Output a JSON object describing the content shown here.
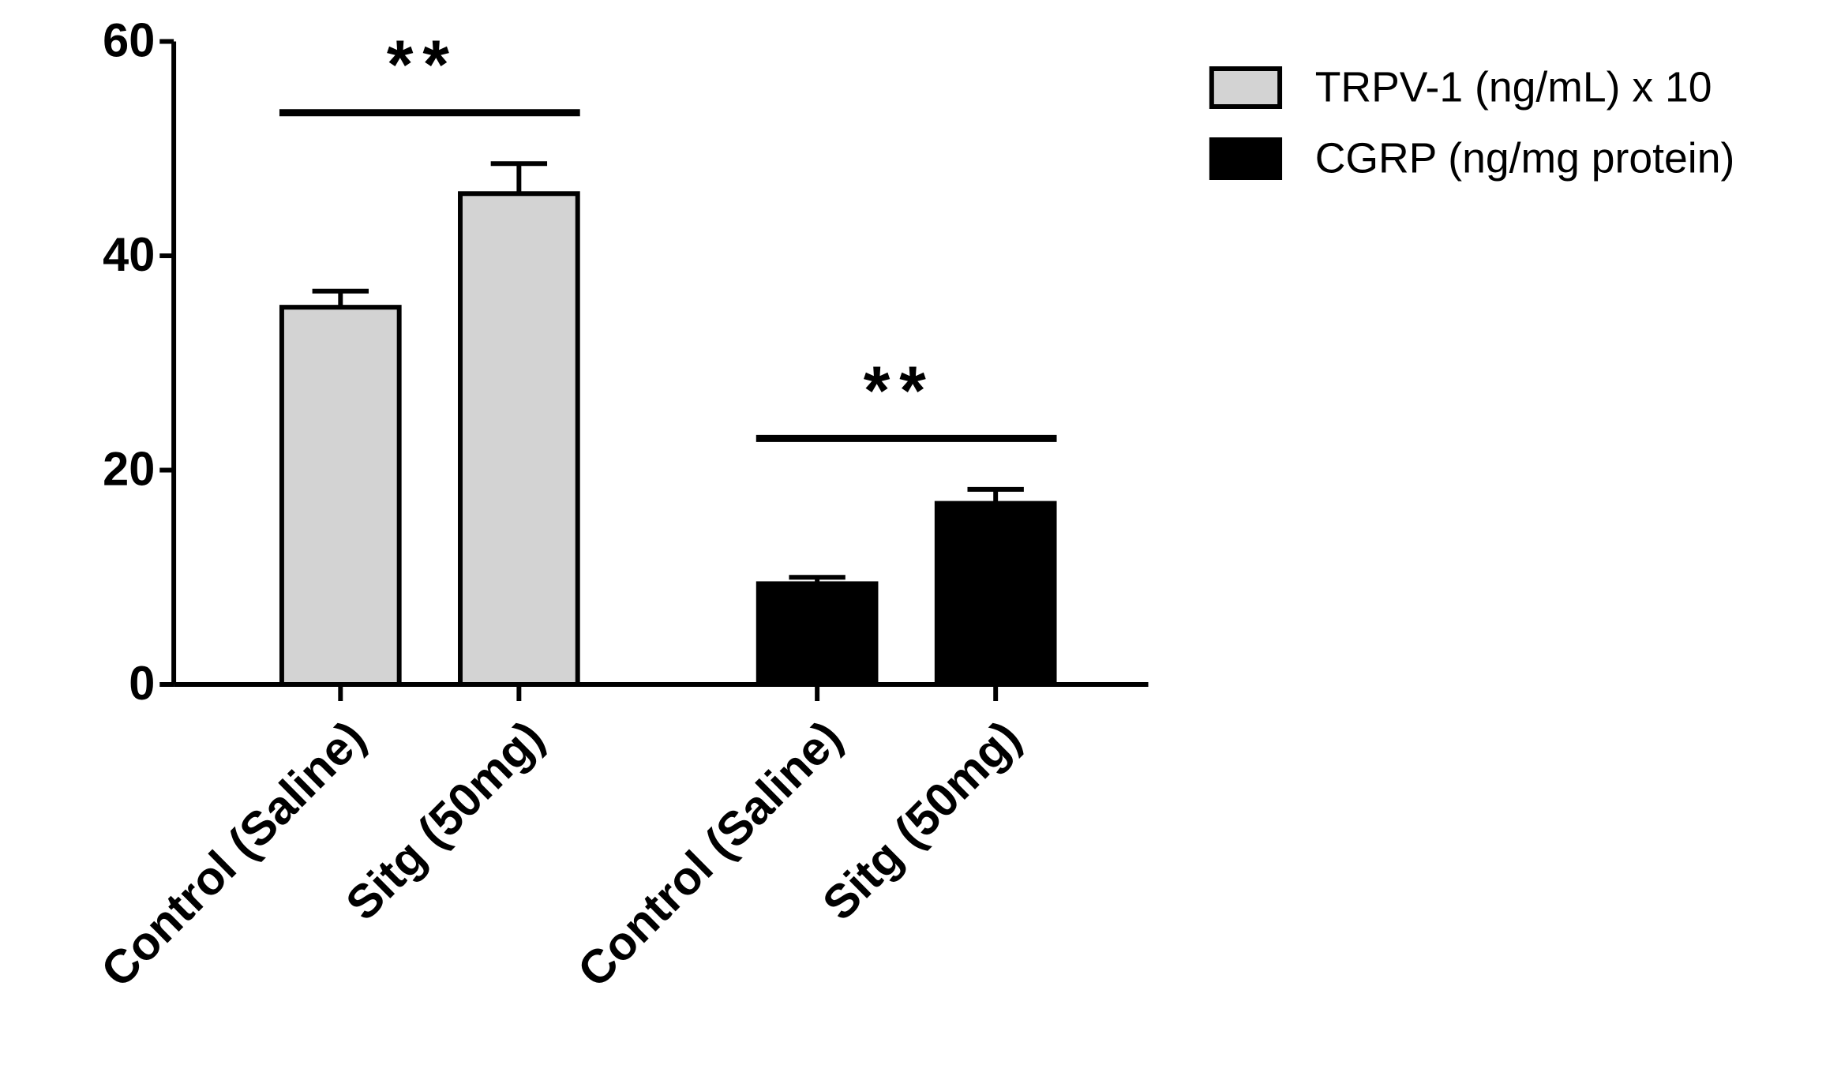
{
  "chart_data": {
    "type": "bar",
    "categories": [
      "Control (Saline)",
      "Sitg (50mg)",
      "Control (Saline)",
      "Sitg (50mg)"
    ],
    "series": [
      {
        "name": "TRPV-1 (ng/mL) x 10",
        "color": "#d3d3d3",
        "values": [
          35.2,
          45.8,
          null,
          null
        ],
        "errors": [
          1.5,
          2.8,
          null,
          null
        ]
      },
      {
        "name": "CGRP (ng/mg protein)",
        "color": "#000000",
        "values": [
          null,
          null,
          9.4,
          16.9
        ],
        "errors": [
          null,
          null,
          0.6,
          1.3
        ]
      }
    ],
    "annotations": [
      {
        "text": "**",
        "from": 0,
        "to": 1
      },
      {
        "text": "**",
        "from": 2,
        "to": 3
      }
    ],
    "ylim": [
      0,
      60
    ],
    "yticks": [
      0,
      20,
      40,
      60
    ],
    "grid": false,
    "legend": "upper right"
  }
}
